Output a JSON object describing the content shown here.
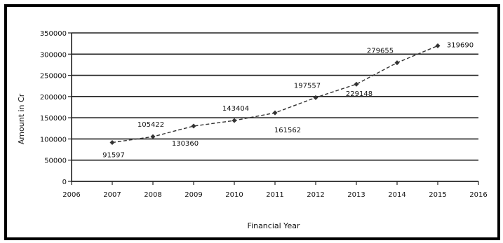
{
  "chart_data": {
    "type": "line",
    "title": "",
    "xlabel": "Financial Year",
    "ylabel": "Amount in Cr",
    "xlim": [
      2006,
      2016
    ],
    "ylim": [
      0,
      350000
    ],
    "x_ticks": [
      "2006",
      "2007",
      "2008",
      "2009",
      "2010",
      "2011",
      "2012",
      "2013",
      "2014",
      "2015",
      "2016"
    ],
    "y_ticks": [
      "0",
      "50000",
      "100000",
      "150000",
      "200000",
      "250000",
      "300000",
      "350000"
    ],
    "grid": "horizontal",
    "legend": "none",
    "series": [
      {
        "color": "#333333",
        "points": [
          {
            "x": 2007,
            "y": 91597,
            "label": "91597"
          },
          {
            "x": 2008,
            "y": 105422,
            "label": "105422"
          },
          {
            "x": 2009,
            "y": 130360,
            "label": "130360"
          },
          {
            "x": 2010,
            "y": 143404,
            "label": "143404"
          },
          {
            "x": 2011,
            "y": 161562,
            "label": "161562"
          },
          {
            "x": 2012,
            "y": 197557,
            "label": "197557"
          },
          {
            "x": 2013,
            "y": 229148,
            "label": "229148"
          },
          {
            "x": 2014,
            "y": 279655,
            "label": "279655"
          },
          {
            "x": 2015,
            "y": 319690,
            "label": "319690"
          }
        ]
      }
    ]
  }
}
